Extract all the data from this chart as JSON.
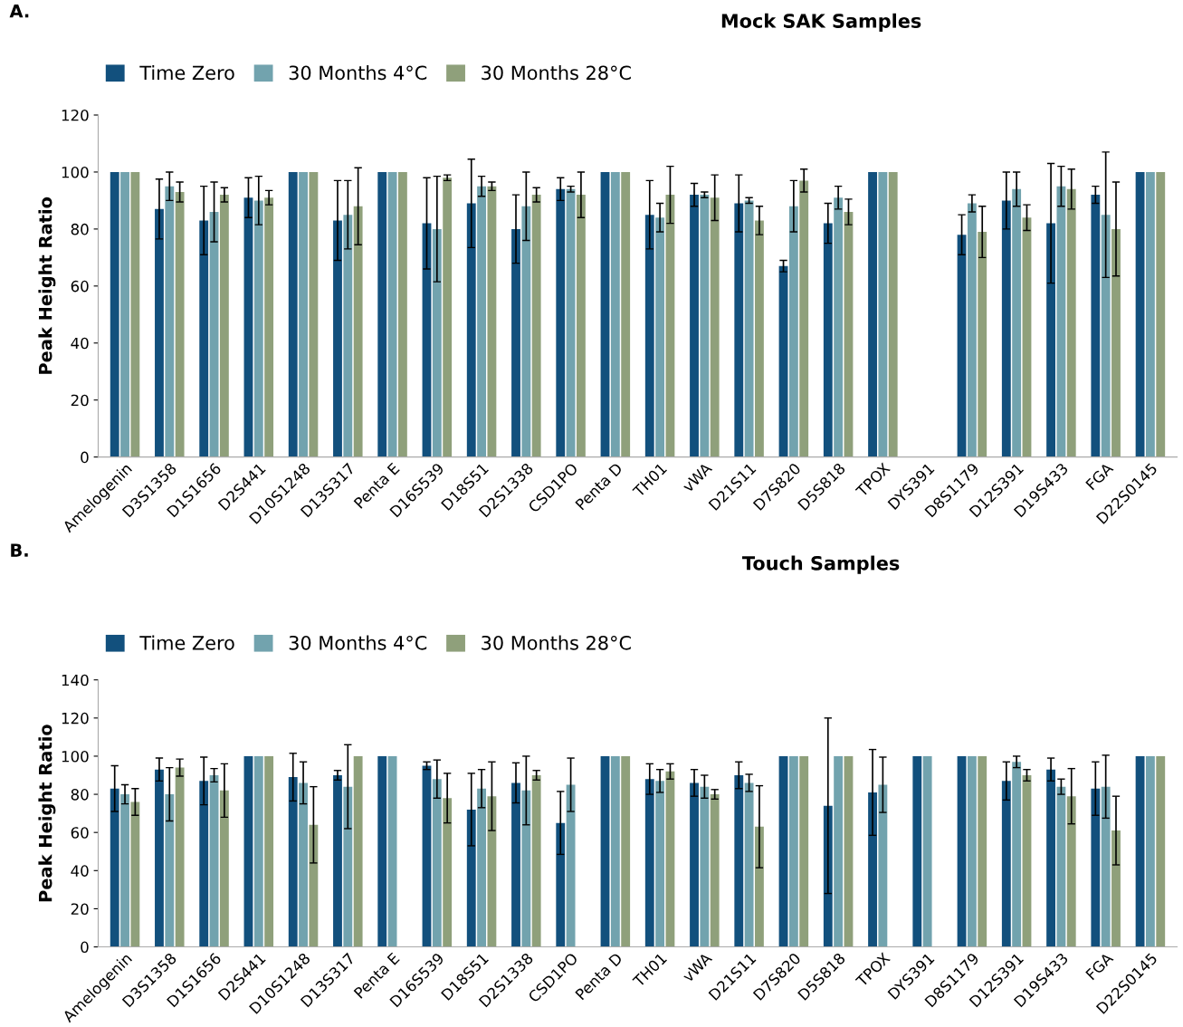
{
  "chart_data": [
    {
      "type": "bar",
      "title": "Mock SAK Samples",
      "ylabel": "Peak Height Ratio",
      "annotations": [
        "A."
      ],
      "legend": "top left",
      "grid": false,
      "categories": [
        "Amelogenin",
        "D3S1358",
        "D1S1656",
        "D2S441",
        "D10S1248",
        "D13S317",
        "Penta E",
        "D16S539",
        "D18S51",
        "D2S1338",
        "CSD1PO",
        "Penta D",
        "TH01",
        "vWA",
        "D21S11",
        "D7S820",
        "D5S818",
        "TPOX",
        "DYS391",
        "D8S1179",
        "D12S391",
        "D19S433",
        "FGA",
        "D22S0145"
      ],
      "ylim": [
        0,
        120
      ],
      "yticks": [
        0,
        20,
        40,
        60,
        80,
        100,
        120
      ],
      "series": [
        {
          "name": "Time Zero",
          "color": "#12507d",
          "values": [
            100,
            87,
            83,
            91,
            100,
            83,
            100,
            82,
            89,
            80,
            94,
            100,
            85,
            92,
            89,
            67,
            82,
            100,
            null,
            78,
            90,
            82,
            92,
            100
          ],
          "errors": [
            null,
            10.5,
            12,
            7,
            null,
            14,
            null,
            16,
            15.5,
            12,
            4,
            null,
            12,
            4,
            10,
            2,
            7,
            null,
            null,
            7,
            10,
            21,
            3,
            null
          ]
        },
        {
          "name": "30 Months 4°C",
          "color": "#72a3ae",
          "values": [
            100,
            95,
            86,
            90,
            100,
            85,
            100,
            80,
            95,
            88,
            94,
            100,
            84,
            92,
            90,
            88,
            91,
            100,
            null,
            89,
            94,
            95,
            85,
            100
          ],
          "errors": [
            null,
            5,
            10.5,
            8.5,
            null,
            12,
            null,
            18.5,
            3.5,
            12,
            1,
            null,
            5,
            1,
            1,
            9,
            4,
            null,
            null,
            3,
            6,
            7,
            22,
            null
          ]
        },
        {
          "name": "30 Months 28°C",
          "color": "#8fa07b",
          "values": [
            100,
            93,
            92,
            91,
            100,
            88,
            100,
            98,
            95,
            92,
            92,
            100,
            92,
            91,
            83,
            97,
            86,
            100,
            null,
            79,
            84,
            94,
            80,
            100
          ],
          "errors": [
            null,
            3.5,
            2.5,
            2.5,
            null,
            13.5,
            null,
            1,
            1.5,
            2.5,
            8,
            null,
            10,
            8,
            5,
            4,
            4.5,
            null,
            null,
            9,
            4.5,
            7,
            16.5,
            null
          ]
        }
      ]
    },
    {
      "type": "bar",
      "title": "Touch Samples",
      "ylabel": "Peak Height Ratio",
      "annotations": [
        "B."
      ],
      "legend": "top left",
      "grid": false,
      "categories": [
        "Amelogenin",
        "D3S1358",
        "D1S1656",
        "D2S441",
        "D10S1248",
        "D13S317",
        "Penta E",
        "D16S539",
        "D18S51",
        "D2S1338",
        "CSD1PO",
        "Penta D",
        "TH01",
        "vWA",
        "D21S11",
        "D7S820",
        "D5S818",
        "TPOX",
        "DYS391",
        "D8S1179",
        "D12S391",
        "D19S433",
        "FGA",
        "D22S0145"
      ],
      "ylim": [
        0,
        140
      ],
      "yticks": [
        0,
        20,
        40,
        60,
        80,
        100,
        120,
        140
      ],
      "series": [
        {
          "name": "Time Zero",
          "color": "#12507d",
          "values": [
            83,
            93,
            87,
            100,
            89,
            90,
            100,
            95,
            72,
            86,
            65,
            100,
            88,
            86,
            90,
            100,
            74,
            81,
            100,
            100,
            87,
            93,
            83,
            100
          ],
          "errors": [
            12,
            6,
            12.5,
            null,
            12.5,
            2.5,
            null,
            2,
            19,
            10.5,
            16.5,
            null,
            8,
            7,
            7,
            null,
            46,
            22.5,
            null,
            null,
            10,
            6,
            14,
            null
          ]
        },
        {
          "name": "30 Months 4°C",
          "color": "#72a3ae",
          "values": [
            80,
            80,
            90,
            100,
            86,
            84,
            100,
            88,
            83,
            82,
            85,
            100,
            87,
            84,
            86,
            100,
            100,
            85,
            100,
            100,
            97,
            84,
            84,
            100
          ],
          "errors": [
            5,
            14,
            3.5,
            null,
            11,
            22,
            null,
            10,
            10,
            18,
            14,
            null,
            6,
            6,
            4.5,
            null,
            null,
            14.5,
            null,
            null,
            3,
            4,
            16.5,
            null
          ]
        },
        {
          "name": "30 Months 28°C",
          "color": "#8fa07b",
          "values": [
            76,
            94,
            82,
            100,
            64,
            100,
            null,
            78,
            79,
            90,
            null,
            100,
            92,
            80,
            63,
            100,
            100,
            null,
            null,
            100,
            90,
            79,
            61,
            100
          ],
          "errors": [
            7,
            4.5,
            14,
            null,
            20,
            null,
            null,
            13,
            18,
            2.5,
            null,
            null,
            4,
            2.5,
            21.5,
            null,
            null,
            null,
            null,
            null,
            3,
            14.5,
            18,
            null
          ]
        }
      ]
    }
  ]
}
